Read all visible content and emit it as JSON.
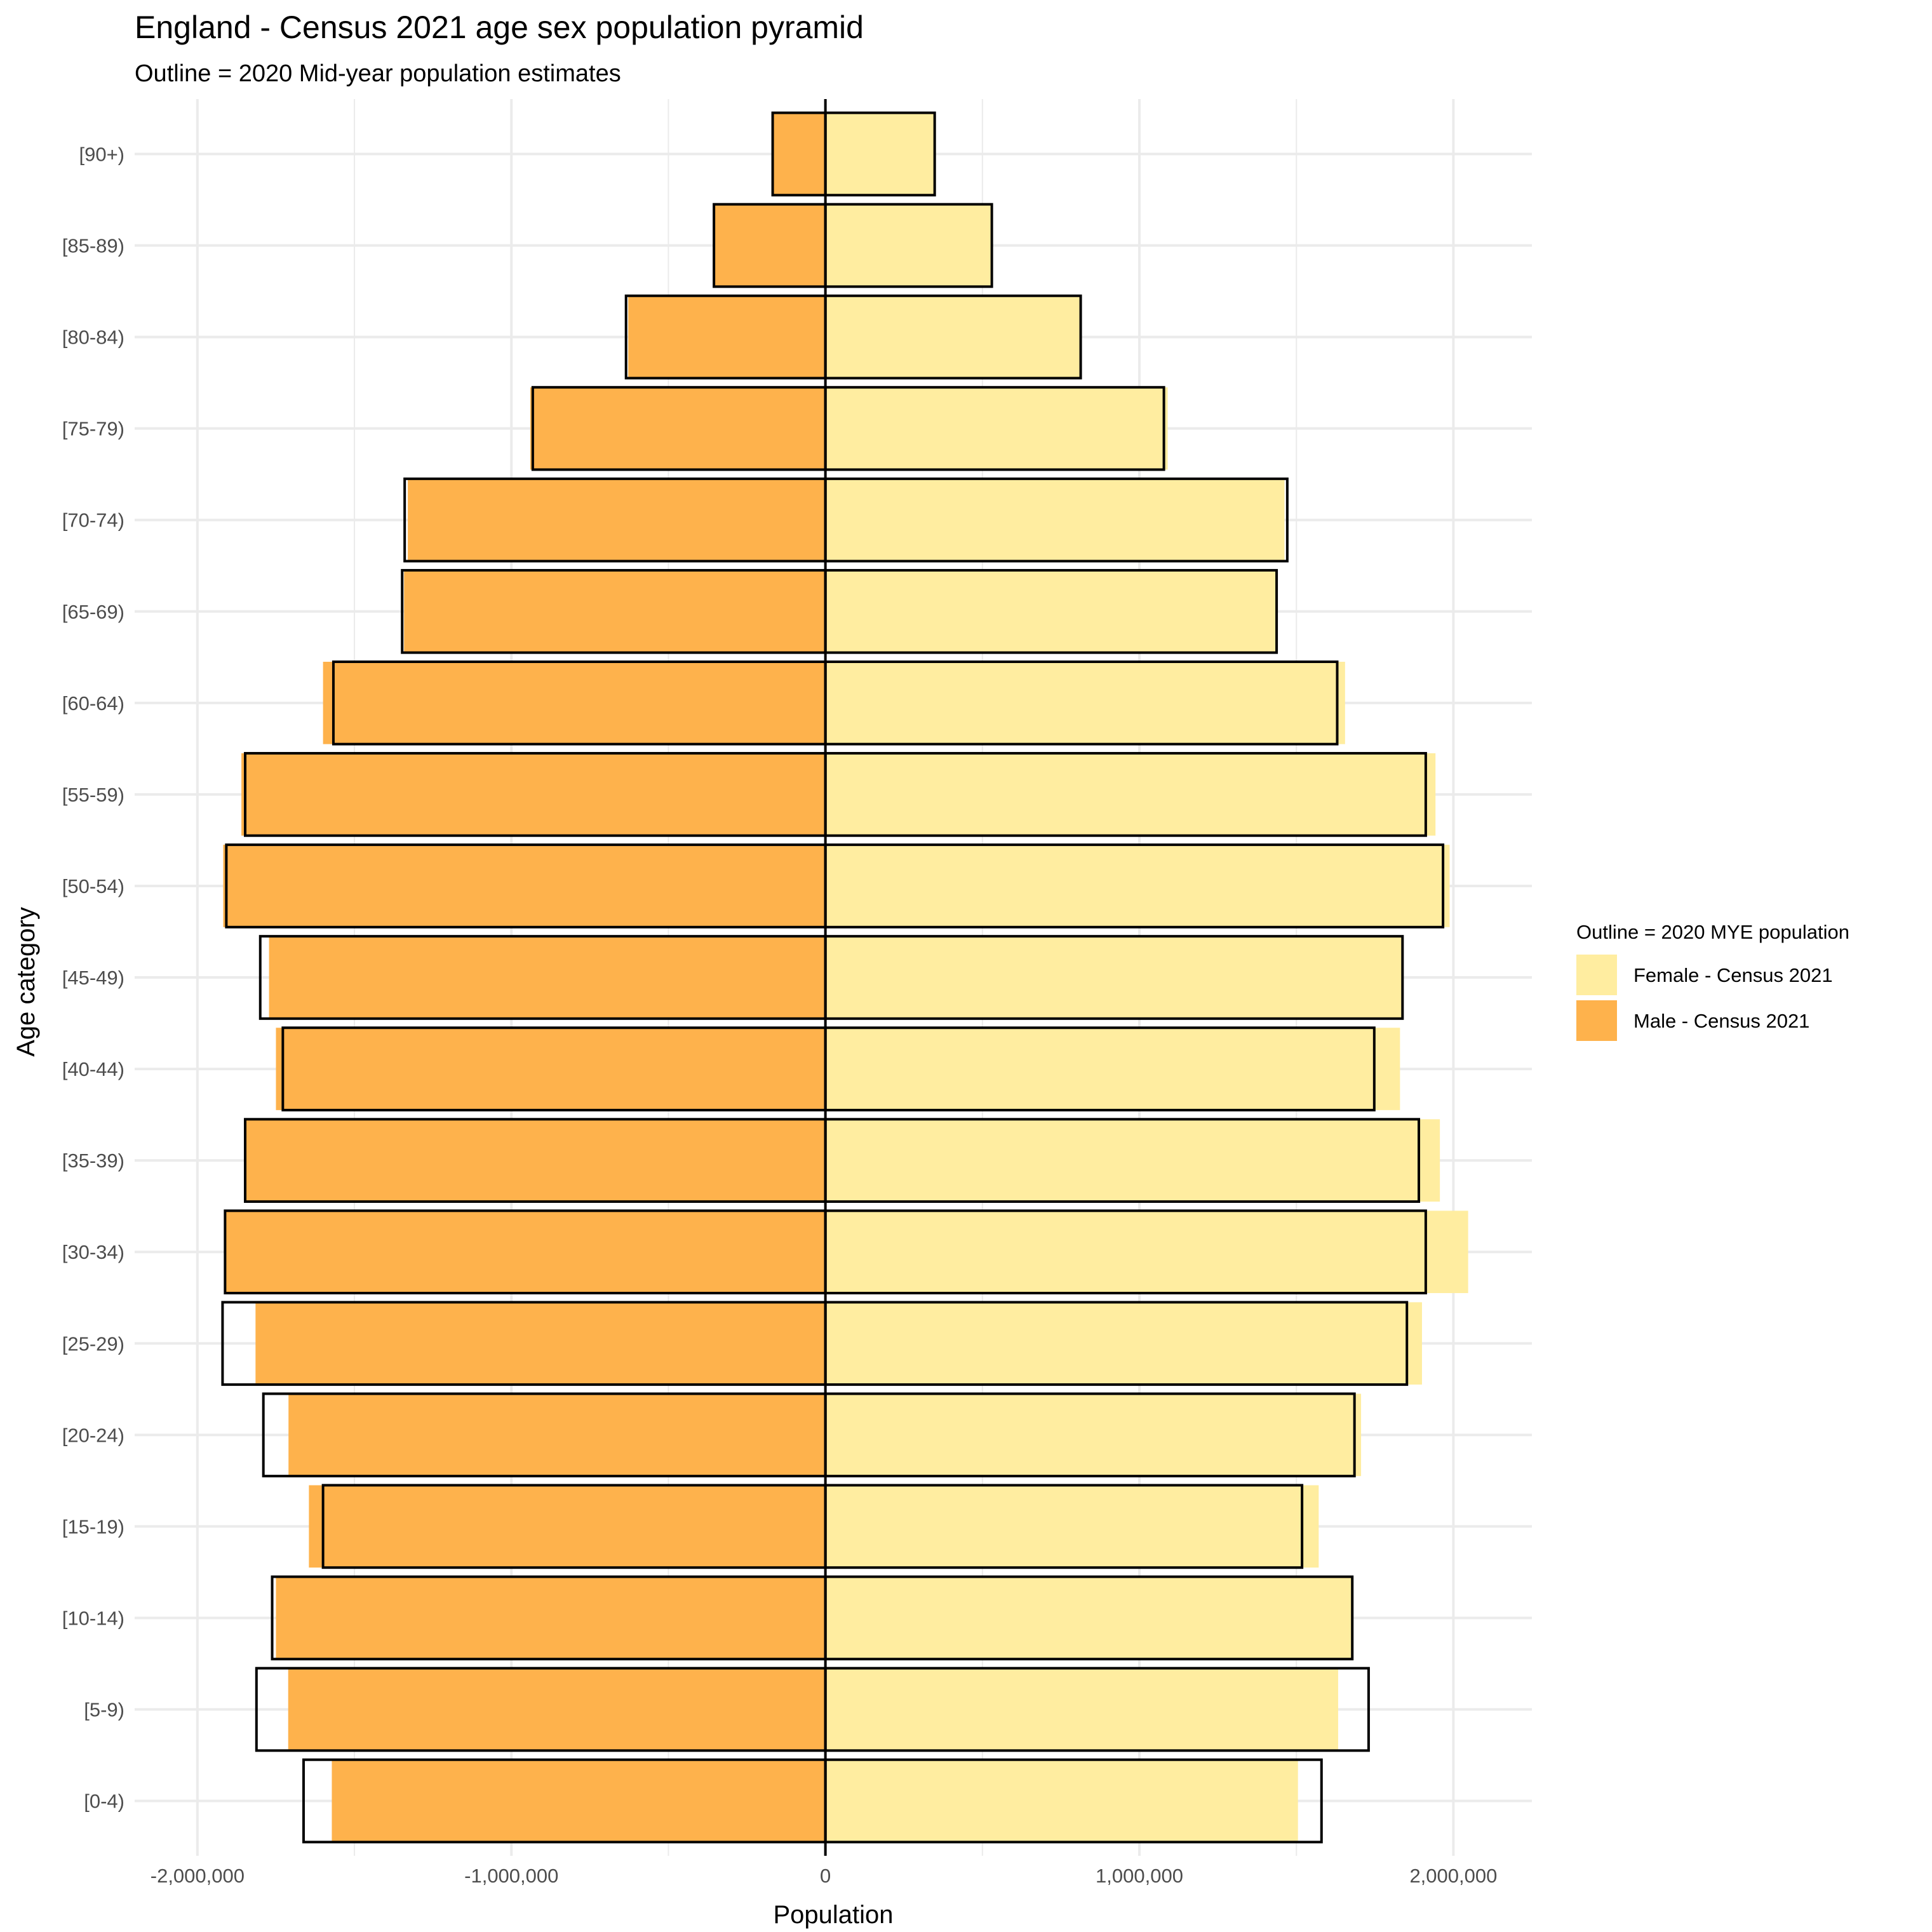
{
  "chart_data": {
    "type": "bar",
    "orientation": "horizontal",
    "title": "England - Census 2021 age sex population pyramid",
    "subtitle": "Outline = 2020 Mid-year population estimates",
    "xlabel": "Population",
    "ylabel": "Age category",
    "xlim": [
      -2200000,
      2250000
    ],
    "x_ticks": [
      -2000000,
      -1000000,
      0,
      1000000,
      2000000
    ],
    "x_tick_labels": [
      "-2,000,000",
      "-1,000,000",
      "0",
      "1,000,000",
      "2,000,000"
    ],
    "grid": true,
    "legend_position": "right",
    "categories": [
      "[0-4)",
      "[5-9)",
      "[10-14)",
      "[15-19)",
      "[20-24)",
      "[25-29)",
      "[30-34)",
      "[35-39)",
      "[40-44)",
      "[45-49)",
      "[50-54)",
      "[55-59)",
      "[60-64)",
      "[65-69)",
      "[70-74)",
      "[75-79)",
      "[80-84)",
      "[85-89)",
      "[90+)"
    ],
    "series": [
      {
        "name": "Female - Census 2021",
        "color": "#FFEDA0",
        "values": [
          1505000,
          1633000,
          1676000,
          1571000,
          1706000,
          1900000,
          2047000,
          1957000,
          1830000,
          1838000,
          1988000,
          1943000,
          1655000,
          1437000,
          1462000,
          1090000,
          813000,
          530000,
          348000
        ]
      },
      {
        "name": "Male - Census 2021",
        "color": "#FEB24C",
        "values": [
          -1572000,
          -1711000,
          -1750000,
          -1645000,
          -1710000,
          -1815000,
          -1910000,
          -1845000,
          -1750000,
          -1772000,
          -1918000,
          -1860000,
          -1600000,
          -1342000,
          -1330000,
          -940000,
          -628000,
          -355000,
          -168000
        ]
      }
    ],
    "outline_series": {
      "name": "2020 MYE population",
      "female": [
        1580000,
        1730000,
        1678000,
        1518000,
        1685000,
        1852000,
        1912000,
        1890000,
        1748000,
        1838000,
        1967000,
        1912000,
        1630000,
        1437000,
        1471000,
        1078000,
        813000,
        530000,
        348000
      ],
      "male": [
        -1662000,
        -1812000,
        -1762000,
        -1600000,
        -1790000,
        -1920000,
        -1912000,
        -1848000,
        -1728000,
        -1800000,
        -1908000,
        -1848000,
        -1567000,
        -1348000,
        -1340000,
        -932000,
        -635000,
        -355000,
        -168000
      ]
    }
  },
  "legend": {
    "title": "Outline  = 2020 MYE population",
    "items": [
      {
        "label": "Female - Census 2021",
        "color": "#FFEDA0"
      },
      {
        "label": "Male - Census 2021",
        "color": "#FEB24C"
      }
    ]
  }
}
